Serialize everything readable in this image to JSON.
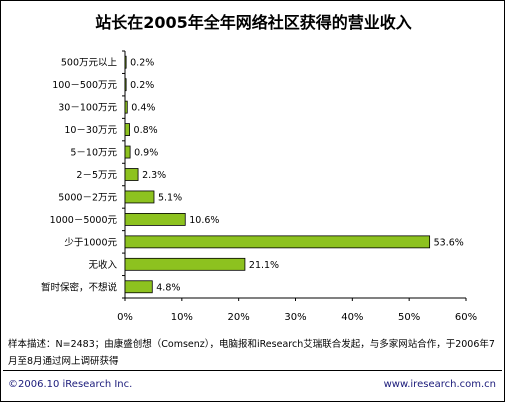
{
  "chart_data": {
    "type": "bar",
    "orientation": "horizontal",
    "title": "站长在2005年全年网络社区获得的营业收入",
    "categories": [
      "500万元以上",
      "100－500万元",
      "30－100万元",
      "10－30万元",
      "5－10万元",
      "2－5万元",
      "5000－2万元",
      "1000－5000元",
      "少于1000元",
      "无收入",
      "暂时保密，不想说"
    ],
    "values": [
      0.2,
      0.2,
      0.4,
      0.8,
      0.9,
      2.3,
      5.1,
      10.6,
      53.6,
      21.1,
      4.8
    ],
    "value_labels": [
      "0.2%",
      "0.2%",
      "0.4%",
      "0.8%",
      "0.9%",
      "2.3%",
      "5.1%",
      "10.6%",
      "53.6%",
      "21.1%",
      "4.8%"
    ],
    "xlim": [
      0,
      60
    ],
    "xticks": [
      0,
      10,
      20,
      30,
      40,
      50,
      60
    ],
    "xtick_labels": [
      "0%",
      "10%",
      "20%",
      "30%",
      "40%",
      "50%",
      "60%"
    ],
    "xlabel": "",
    "ylabel": "",
    "grid": false,
    "bar_color": "#8dc21f"
  },
  "note": "样本描述：N=2483；由康盛创想（Comsenz），电脑报和iResearch艾瑞联合发起，与多家网站合作，于2006年7月至8月通过网上调研获得",
  "footer": {
    "copyright": "©2006.10 iResearch Inc.",
    "website": "www.iresearch.com.cn"
  }
}
